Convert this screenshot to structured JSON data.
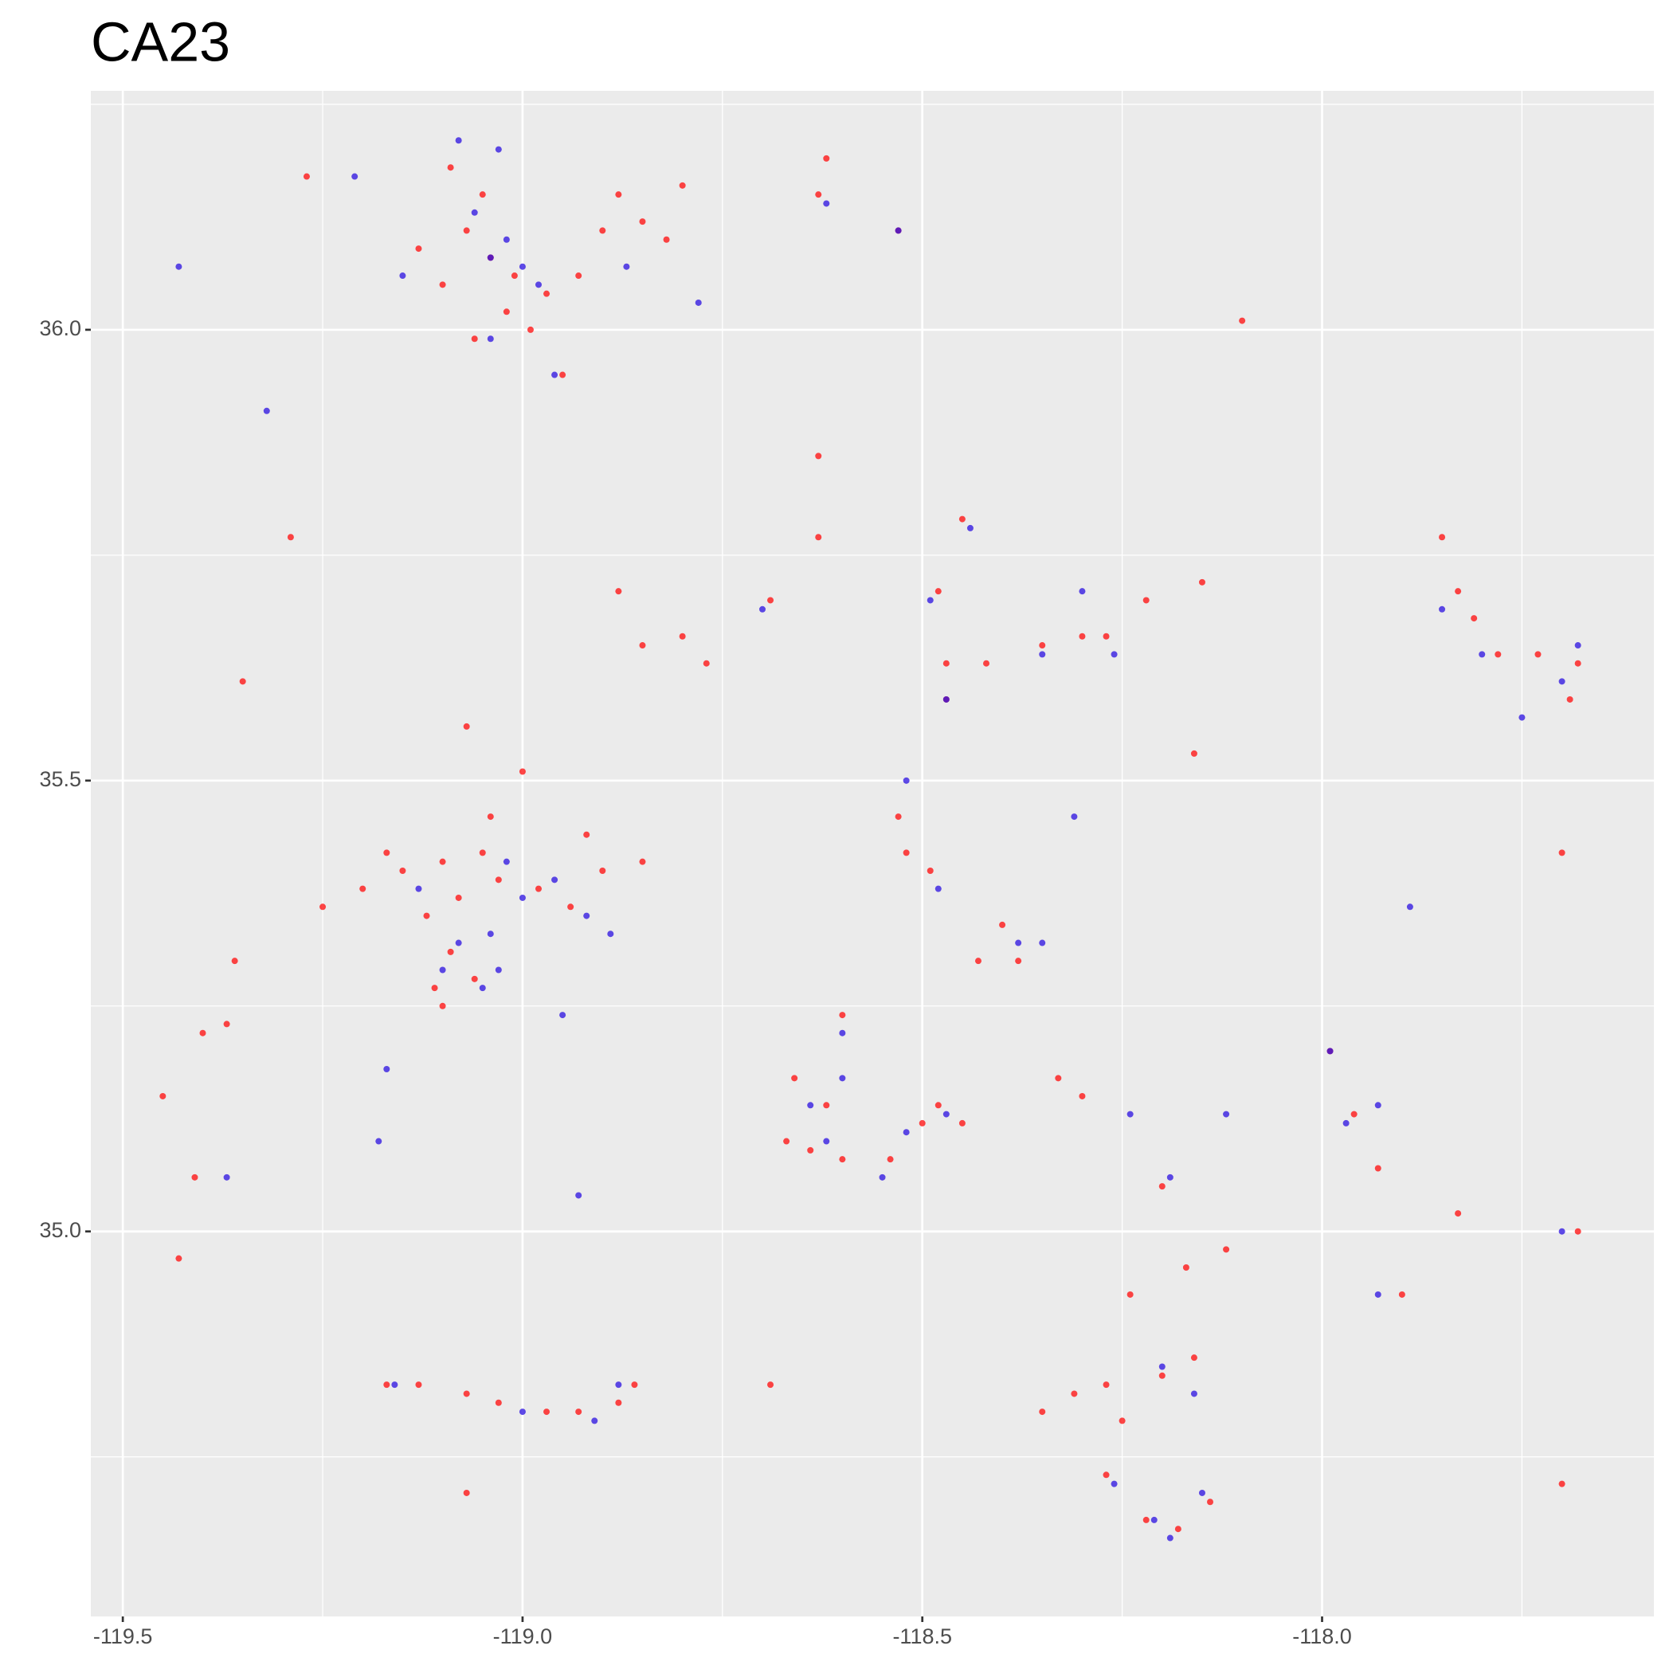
{
  "chart_data": {
    "type": "scatter",
    "title": "CA23",
    "xlim": [
      -119.54,
      -117.585
    ],
    "ylim": [
      34.573,
      36.265
    ],
    "xticks": [
      -119.5,
      {
        "value": -119,
        "label": "-119.0"
      },
      -118.5,
      {
        "value": -118,
        "label": "-118.0"
      }
    ],
    "yticks": [
      {
        "value": 35,
        "label": "35.0"
      },
      35.5,
      {
        "value": 36,
        "label": "36.0"
      }
    ],
    "xminor": [
      -119.25,
      -118.75,
      -118.25,
      -117.75
    ],
    "yminor": [
      34.75,
      35.25,
      35.75,
      36.25
    ],
    "grid": true,
    "series": [
      {
        "color": "#ff0a0a",
        "x": [
          -119.04,
          -119.07,
          -119.01,
          -119.1,
          -119.13,
          -118.97,
          -119.05,
          -119.09,
          -119.02,
          -118.99,
          -119.06,
          -118.95,
          -118.93,
          -118.85,
          -118.82,
          -118.8,
          -118.88,
          -118.9,
          -118.63,
          -118.62,
          -118.53,
          -118.1,
          -119.2,
          -119.15,
          -119.1,
          -119.12,
          -119.08,
          -119.05,
          -119.03,
          -119.09,
          -119.06,
          -119.11,
          -118.98,
          -118.94,
          -118.9,
          -118.85,
          -118.92,
          -119.25,
          -119.1,
          -119.04,
          -119.17,
          -118.63,
          -118.63,
          -118.69,
          -118.85,
          -118.8,
          -118.88,
          -118.77,
          -118.48,
          -118.47,
          -118.47,
          -118.42,
          -118.35,
          -118.3,
          -118.27,
          -118.22,
          -118.15,
          -118.45,
          -117.85,
          -117.83,
          -117.81,
          -117.78,
          -117.73,
          -117.68,
          -117.69,
          -118.52,
          -118.49,
          -118.53,
          -118.4,
          -118.38,
          -118.43,
          -118.66,
          -118.62,
          -118.64,
          -118.6,
          -118.54,
          -118.5,
          -118.48,
          -118.45,
          -118.67,
          -118.6,
          -118.33,
          -118.3,
          -118.27,
          -118.24,
          -118.2,
          -118.16,
          -118.27,
          -118.22,
          -118.18,
          -118.14,
          -118.25,
          -118.17,
          -118.12,
          -118.2,
          -118.31,
          -117.96,
          -117.93,
          -117.99,
          -117.83,
          -117.68,
          -117.9,
          -119.4,
          -119.37,
          -119.45,
          -119.41,
          -119.43,
          -119.36,
          -119.35,
          -119.07,
          -119.0,
          -119.17,
          -119.13,
          -119.07,
          -119.03,
          -118.97,
          -118.93,
          -118.88,
          -118.86,
          -119.07,
          -118.69,
          -118.35,
          -117.7,
          -117.7,
          -118.16,
          -119.29,
          -119.27
        ],
        "y": [
          36.08,
          36.11,
          36.06,
          36.05,
          36.09,
          36.04,
          36.15,
          36.18,
          36.02,
          36.0,
          35.99,
          35.95,
          36.06,
          36.12,
          36.1,
          36.16,
          36.15,
          36.11,
          36.15,
          36.19,
          36.11,
          36.01,
          35.38,
          35.4,
          35.41,
          35.35,
          35.37,
          35.42,
          35.39,
          35.31,
          35.28,
          35.27,
          35.38,
          35.36,
          35.4,
          35.41,
          35.44,
          35.36,
          35.25,
          35.46,
          35.42,
          35.77,
          35.86,
          35.7,
          35.65,
          35.66,
          35.71,
          35.63,
          35.71,
          35.63,
          35.59,
          35.63,
          35.65,
          35.66,
          35.66,
          35.7,
          35.72,
          35.79,
          35.77,
          35.71,
          35.68,
          35.64,
          35.64,
          35.63,
          35.59,
          35.42,
          35.4,
          35.46,
          35.34,
          35.3,
          35.3,
          35.17,
          35.14,
          35.09,
          35.08,
          35.08,
          35.12,
          35.14,
          35.12,
          35.1,
          35.24,
          35.17,
          35.15,
          34.83,
          34.93,
          34.84,
          34.86,
          34.73,
          34.68,
          34.67,
          34.7,
          34.79,
          34.96,
          34.98,
          35.05,
          34.82,
          35.13,
          35.07,
          35.2,
          35.02,
          35.0,
          34.93,
          35.22,
          35.23,
          35.15,
          35.06,
          34.97,
          35.3,
          35.61,
          35.56,
          35.51,
          34.83,
          34.83,
          34.82,
          34.81,
          34.8,
          34.8,
          34.81,
          34.83,
          34.71,
          34.83,
          34.8,
          35.42,
          34.72,
          35.53,
          35.77,
          36.17
        ]
      },
      {
        "color": "#2a0fe0",
        "x": [
          -119.04,
          -119.02,
          -119.06,
          -119.0,
          -118.98,
          -119.15,
          -119.08,
          -119.03,
          -119.21,
          -119.43,
          -118.78,
          -118.87,
          -118.53,
          -118.62,
          -118.96,
          -119.04,
          -119.04,
          -119.05,
          -119.03,
          -119.08,
          -119.0,
          -118.96,
          -118.92,
          -118.89,
          -119.1,
          -119.13,
          -119.02,
          -118.64,
          -118.62,
          -118.52,
          -118.47,
          -118.6,
          -118.55,
          -118.6,
          -118.47,
          -118.49,
          -118.44,
          -118.35,
          -118.26,
          -118.3,
          -118.52,
          -118.48,
          -118.38,
          -118.35,
          -117.7,
          -117.68,
          -117.75,
          -117.8,
          -117.85,
          -117.97,
          -117.93,
          -117.99,
          -117.93,
          -117.7,
          -117.89,
          -118.21,
          -118.15,
          -118.19,
          -118.16,
          -118.2,
          -118.26,
          -118.19,
          -118.24,
          -118.12,
          -119.16,
          -119.0,
          -118.91,
          -118.88,
          -119.17,
          -119.18,
          -119.37,
          -118.93,
          -119.32,
          -118.95,
          -118.7,
          -118.31
        ],
        "y": [
          36.08,
          36.1,
          36.13,
          36.07,
          36.05,
          36.06,
          36.21,
          36.2,
          36.17,
          36.07,
          36.03,
          36.07,
          36.11,
          36.14,
          35.95,
          35.99,
          35.33,
          35.27,
          35.29,
          35.32,
          35.37,
          35.39,
          35.35,
          35.33,
          35.29,
          35.38,
          35.41,
          35.14,
          35.1,
          35.11,
          35.13,
          35.17,
          35.06,
          35.22,
          35.59,
          35.7,
          35.78,
          35.64,
          35.64,
          35.71,
          35.5,
          35.38,
          35.32,
          35.32,
          35.61,
          35.65,
          35.57,
          35.64,
          35.69,
          35.12,
          35.14,
          35.2,
          34.93,
          35.0,
          35.36,
          34.68,
          34.71,
          34.66,
          34.82,
          34.85,
          34.72,
          35.06,
          35.13,
          35.13,
          34.83,
          34.8,
          34.79,
          34.83,
          35.18,
          35.1,
          35.06,
          35.04,
          35.91,
          35.24,
          35.69,
          35.46
        ]
      }
    ]
  }
}
